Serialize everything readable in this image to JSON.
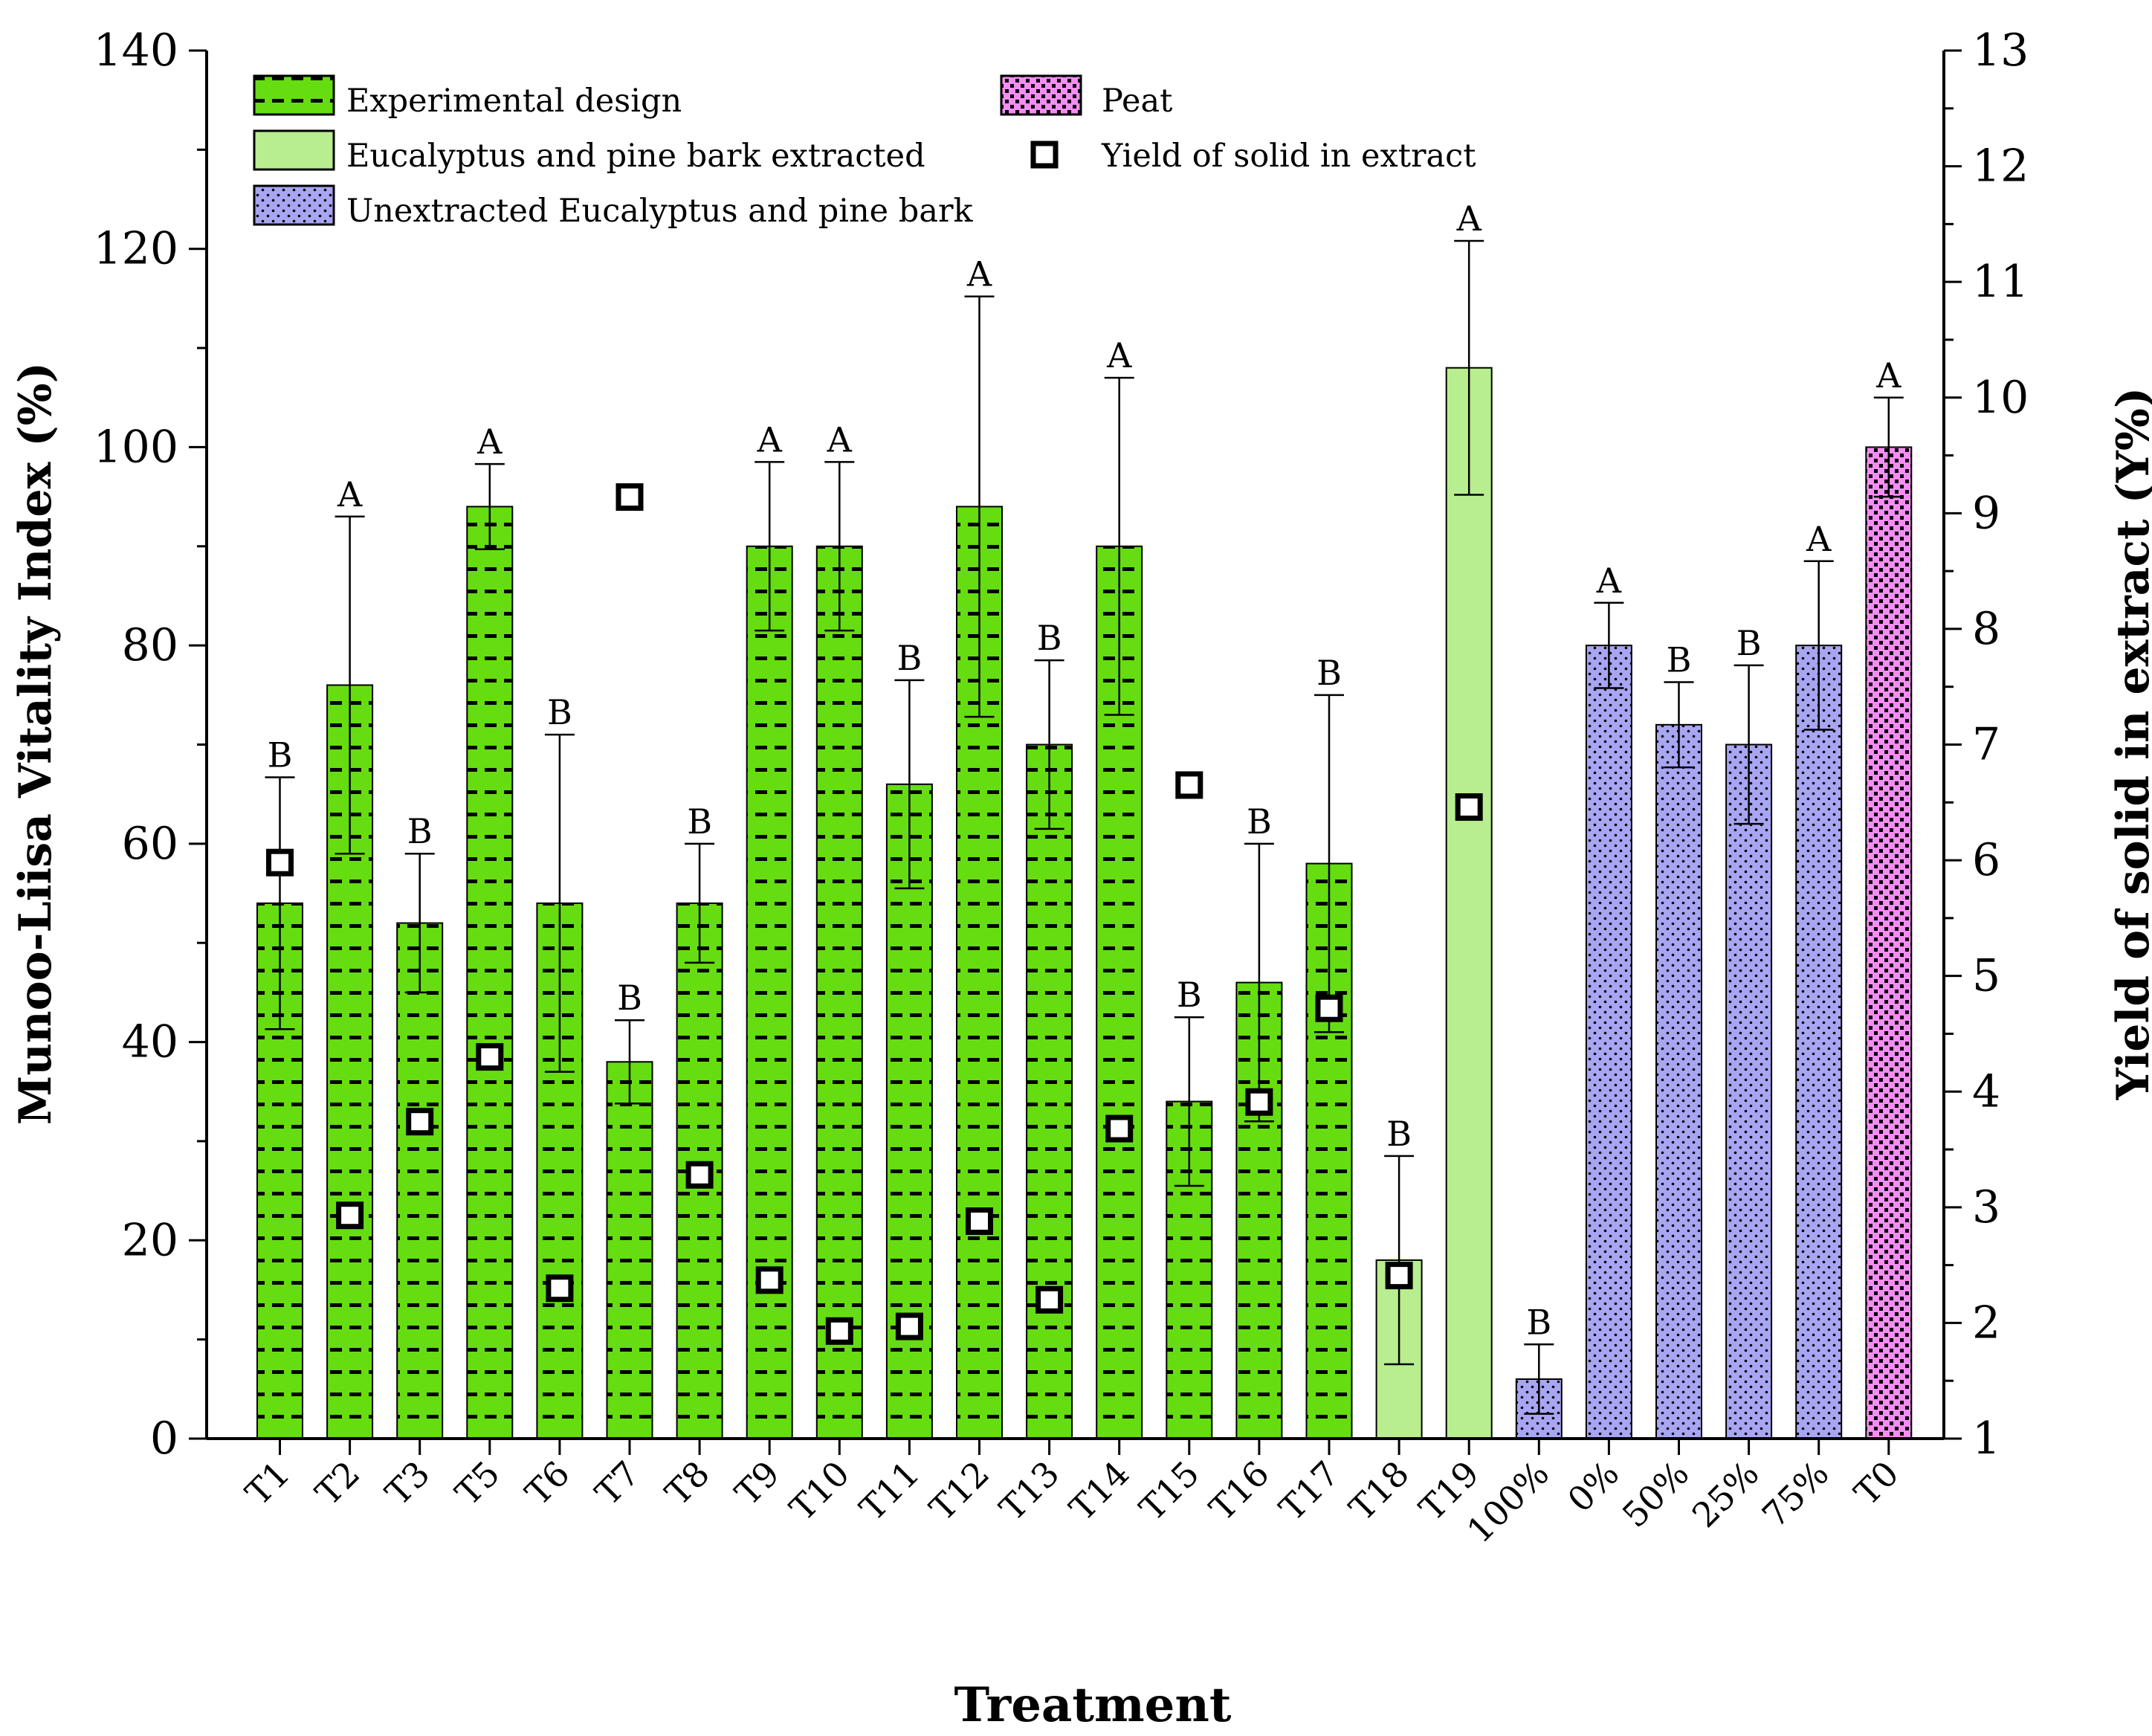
{
  "chart_data": {
    "type": "bar",
    "xlabel": "Treatment",
    "ylabel": "Munoo-Liisa Vitality Index (%)",
    "y2label": "Yield of solid in extract (Y%)",
    "ylim": [
      0,
      140
    ],
    "y2lim": [
      1,
      13
    ],
    "yticks": [
      0,
      20,
      40,
      60,
      80,
      100,
      120,
      140
    ],
    "y2ticks": [
      1,
      2,
      3,
      4,
      5,
      6,
      7,
      8,
      9,
      10,
      11,
      12,
      13
    ],
    "categories": [
      "T1",
      "T2",
      "T3",
      "T5",
      "T6",
      "T7",
      "T8",
      "T9",
      "T10",
      "T11",
      "T12",
      "T13",
      "T14",
      "T15",
      "T16",
      "T17",
      "T18",
      "T19",
      "100%",
      "0%",
      "50%",
      "25%",
      "75%",
      "T0"
    ],
    "groups": [
      "exp",
      "exp",
      "exp",
      "exp",
      "exp",
      "exp",
      "exp",
      "exp",
      "exp",
      "exp",
      "exp",
      "exp",
      "exp",
      "exp",
      "exp",
      "exp",
      "extracted",
      "extracted",
      "unextracted",
      "unextracted",
      "unextracted",
      "unextracted",
      "unextracted",
      "peat"
    ],
    "values": [
      54,
      76,
      52,
      94,
      54,
      38,
      54,
      90,
      90,
      66,
      94,
      70,
      90,
      34,
      46,
      58,
      18,
      108,
      6,
      80,
      72,
      70,
      80,
      100
    ],
    "errors": [
      12.7,
      17,
      7,
      4.3,
      17,
      4.2,
      6,
      8.5,
      8.5,
      10.5,
      21.2,
      8.5,
      17,
      8.5,
      14,
      17,
      10.5,
      12.8,
      3.5,
      4.3,
      4.3,
      8,
      8.5,
      5
    ],
    "letters": [
      "B",
      "A",
      "B",
      "A",
      "B",
      "B",
      "B",
      "A",
      "A",
      "B",
      "A",
      "B",
      "A",
      "B",
      "B",
      "B",
      "B",
      "A",
      "B",
      "A",
      "B",
      "B",
      "A",
      "A"
    ],
    "yield": [
      5.98,
      2.93,
      3.74,
      4.3,
      2.3,
      9.14,
      3.28,
      2.37,
      1.93,
      1.97,
      2.88,
      2.2,
      3.68,
      6.65,
      3.91,
      4.72,
      2.41,
      6.46,
      null,
      null,
      null,
      null,
      null,
      null
    ],
    "legend": [
      {
        "key": "exp",
        "label": "Experimental design"
      },
      {
        "key": "extracted",
        "label": "Eucalyptus and pine bark extracted"
      },
      {
        "key": "unextracted",
        "label": "Unextracted Eucalyptus and pine bark"
      },
      {
        "key": "peat",
        "label": "Peat"
      },
      {
        "key": "yield",
        "label": "Yield of solid in extract"
      }
    ],
    "legend_position": "top-left",
    "colors": {
      "exp": "#66dd11",
      "extracted": "#b8ee8f",
      "unextracted": "#a8a6f2",
      "peat": "#f38df2",
      "axis": "#000000"
    }
  }
}
